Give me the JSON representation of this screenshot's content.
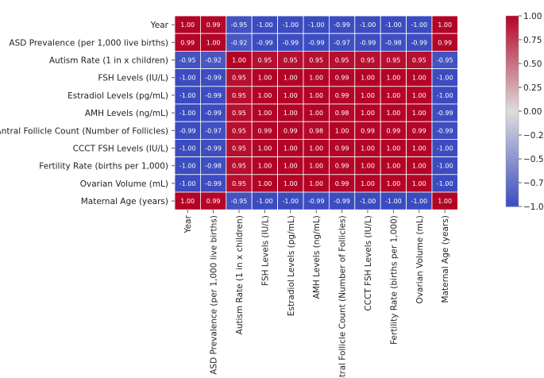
{
  "chart_data": {
    "type": "heatmap",
    "title": "",
    "xlabel": "",
    "ylabel": "",
    "labels": [
      "Year",
      "ASD Prevalence (per 1,000 live births)",
      "Autism Rate (1 in x children)",
      "FSH Levels (IU/L)",
      "Estradiol Levels (pg/mL)",
      "AMH Levels (ng/mL)",
      "Antral Follicle Count (Number of Follicles)",
      "CCCT FSH Levels (IU/L)",
      "Fertility Rate (births per 1,000)",
      "Ovarian Volume (mL)",
      "Maternal Age (years)"
    ],
    "matrix": [
      [
        1.0,
        0.99,
        -0.95,
        -1.0,
        -1.0,
        -1.0,
        -0.99,
        -1.0,
        -1.0,
        -1.0,
        1.0
      ],
      [
        0.99,
        1.0,
        -0.92,
        -0.99,
        -0.99,
        -0.99,
        -0.97,
        -0.99,
        -0.98,
        -0.99,
        0.99
      ],
      [
        -0.95,
        -0.92,
        1.0,
        0.95,
        0.95,
        0.95,
        0.95,
        0.95,
        0.95,
        0.95,
        -0.95
      ],
      [
        -1.0,
        -0.99,
        0.95,
        1.0,
        1.0,
        1.0,
        0.99,
        1.0,
        1.0,
        1.0,
        -1.0
      ],
      [
        -1.0,
        -0.99,
        0.95,
        1.0,
        1.0,
        1.0,
        0.99,
        1.0,
        1.0,
        1.0,
        -1.0
      ],
      [
        -1.0,
        -0.99,
        0.95,
        1.0,
        1.0,
        1.0,
        0.98,
        1.0,
        1.0,
        1.0,
        -0.99
      ],
      [
        -0.99,
        -0.97,
        0.95,
        0.99,
        0.99,
        0.98,
        1.0,
        0.99,
        0.99,
        0.99,
        -0.99
      ],
      [
        -1.0,
        -0.99,
        0.95,
        1.0,
        1.0,
        1.0,
        0.99,
        1.0,
        1.0,
        1.0,
        -1.0
      ],
      [
        -1.0,
        -0.98,
        0.95,
        1.0,
        1.0,
        1.0,
        0.99,
        1.0,
        1.0,
        1.0,
        -1.0
      ],
      [
        -1.0,
        -0.99,
        0.95,
        1.0,
        1.0,
        1.0,
        0.99,
        1.0,
        1.0,
        1.0,
        -1.0
      ],
      [
        1.0,
        0.99,
        -0.95,
        -1.0,
        -1.0,
        -0.99,
        -0.99,
        -1.0,
        -1.0,
        -1.0,
        1.0
      ]
    ],
    "value_format": "2 decimals",
    "colormap": "coolwarm",
    "color_low": "#3b4cc0",
    "color_mid": "#dddddd",
    "color_high": "#b40426",
    "vmin": -1.0,
    "vmax": 1.0,
    "colorbar_ticks": [
      1.0,
      0.75,
      0.5,
      0.25,
      0.0,
      -0.25,
      -0.5,
      -0.75,
      -1.0
    ],
    "colorbar_tick_labels": [
      "1.00",
      "0.75",
      "0.50",
      "0.25",
      "0.00",
      "−0.25",
      "−0.50",
      "−0.75",
      "−1.00"
    ],
    "grid": false,
    "legend": "colorbar-right"
  }
}
